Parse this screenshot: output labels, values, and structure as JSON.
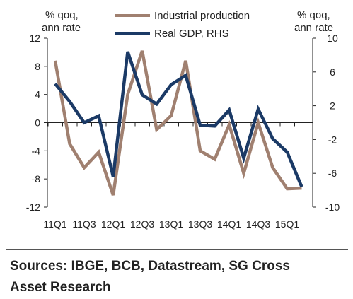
{
  "chart_data": {
    "type": "line",
    "x_labels": [
      "11Q1",
      "11Q2",
      "11Q3",
      "11Q4",
      "12Q1",
      "12Q2",
      "12Q3",
      "12Q4",
      "13Q1",
      "13Q2",
      "13Q3",
      "13Q4",
      "14Q1",
      "14Q2",
      "14Q3",
      "14Q4",
      "15Q1",
      "15Q2"
    ],
    "x_tick_labels": [
      "11Q1",
      "11Q3",
      "12Q1",
      "12Q3",
      "13Q1",
      "13Q3",
      "14Q1",
      "14Q3",
      "15Q1"
    ],
    "left_axis": {
      "label": "% qoq,\nann rate",
      "ylim": [
        -12,
        12
      ],
      "ticks": [
        "12",
        "8",
        "4",
        "0",
        "-4",
        "-8",
        "-12"
      ]
    },
    "right_axis": {
      "label": "% qoq,\nann rate",
      "ylim": [
        -10,
        10
      ],
      "ticks": [
        "10",
        "6",
        "2",
        "-2",
        "-6",
        "-10"
      ]
    },
    "series": [
      {
        "name": "Industrial production",
        "axis": "left",
        "color": "#a08070",
        "values": [
          8.8,
          -3.0,
          -6.4,
          -4.2,
          -10.3,
          4.0,
          10.2,
          -1.0,
          1.0,
          8.8,
          -4.0,
          -5.2,
          -0.3,
          -7.2,
          0.0,
          -6.4,
          -9.4,
          -9.3
        ]
      },
      {
        "name": "Real GDP, RHS",
        "axis": "right",
        "color": "#1b3a66",
        "values": [
          4.6,
          2.5,
          0.0,
          0.8,
          -6.4,
          8.4,
          3.3,
          2.2,
          4.5,
          5.6,
          -0.3,
          -0.4,
          1.5,
          -4.2,
          1.6,
          -1.9,
          -3.5,
          -7.6
        ]
      }
    ]
  },
  "source": {
    "line1": "Sources: IBGE, BCB, Datastream, SG Cross",
    "line2": "Asset Research"
  }
}
